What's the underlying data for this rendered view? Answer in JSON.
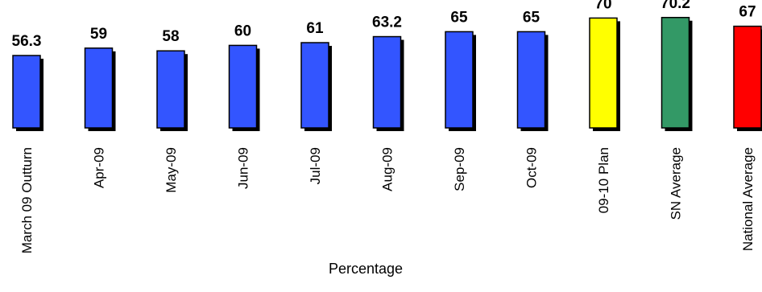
{
  "chart_data": {
    "type": "bar",
    "categories": [
      "March 09 Outturn",
      "Apr-09",
      "May-09",
      "Jun-09",
      "Jul-09",
      "Aug-09",
      "Sep-09",
      "Oct-09",
      "09-10 Plan",
      "SN Average",
      "National Average"
    ],
    "values": [
      56.3,
      59,
      58,
      60,
      61,
      63.2,
      65,
      65,
      70,
      70.2,
      67
    ],
    "value_labels": [
      "56.3",
      "59",
      "58",
      "60",
      "61",
      "63.2",
      "65",
      "65",
      "70",
      "70.2",
      "67"
    ],
    "colors": [
      "#3355ff",
      "#3355ff",
      "#3355ff",
      "#3355ff",
      "#3355ff",
      "#3355ff",
      "#3355ff",
      "#3355ff",
      "#ffff00",
      "#339966",
      "#ff0000"
    ],
    "title": "",
    "xlabel": "Percentage",
    "ylabel": "",
    "grid": false,
    "legend": "none"
  }
}
